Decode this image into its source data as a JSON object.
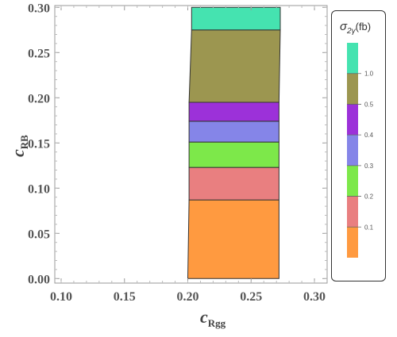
{
  "chart_data": {
    "type": "area",
    "title": "",
    "xlabel_main": "c",
    "xlabel_sub": "Rgg",
    "ylabel_main": "c",
    "ylabel_sub": "RB",
    "xlim": [
      0.095,
      0.31
    ],
    "ylim": [
      -0.005,
      0.302
    ],
    "xticks": [
      "0.10",
      "0.15",
      "0.20",
      "0.25",
      "0.30"
    ],
    "xtick_values": [
      0.1,
      0.15,
      0.2,
      0.25,
      0.3
    ],
    "yticks": [
      "0.00",
      "0.05",
      "0.10",
      "0.15",
      "0.20",
      "0.25",
      "0.30"
    ],
    "ytick_values": [
      0.0,
      0.05,
      0.1,
      0.15,
      0.2,
      0.25,
      0.3
    ],
    "grid": false,
    "legend_position": "right",
    "legend_title_main": "σ",
    "legend_title_sub": "2γ",
    "legend_title_unit": "(fb)",
    "legend_labels": [
      "0.1",
      "0.2",
      "0.3",
      "0.4",
      "0.5",
      "1.0"
    ],
    "bands": [
      {
        "y0": 0.0,
        "y1": 0.087,
        "x_left0": 0.2,
        "x_left1": 0.201,
        "x_right0": 0.272,
        "x_right1": 0.272,
        "color": "#ff9a40"
      },
      {
        "y0": 0.087,
        "y1": 0.123,
        "x_left0": 0.201,
        "x_left1": 0.201,
        "x_right0": 0.272,
        "x_right1": 0.272,
        "color": "#e97f80"
      },
      {
        "y0": 0.123,
        "y1": 0.151,
        "x_left0": 0.201,
        "x_left1": 0.201,
        "x_right0": 0.272,
        "x_right1": 0.272,
        "color": "#7de84a"
      },
      {
        "y0": 0.151,
        "y1": 0.174,
        "x_left0": 0.201,
        "x_left1": 0.201,
        "x_right0": 0.272,
        "x_right1": 0.272,
        "color": "#8585e8"
      },
      {
        "y0": 0.174,
        "y1": 0.195,
        "x_left0": 0.201,
        "x_left1": 0.201,
        "x_right0": 0.272,
        "x_right1": 0.272,
        "color": "#9c31d9"
      },
      {
        "y0": 0.195,
        "y1": 0.275,
        "x_left0": 0.201,
        "x_left1": 0.203,
        "x_right0": 0.272,
        "x_right1": 0.273,
        "color": "#9c9650"
      },
      {
        "y0": 0.275,
        "y1": 0.3,
        "x_left0": 0.203,
        "x_left1": 0.203,
        "x_right0": 0.273,
        "x_right1": 0.273,
        "color": "#45e3b0"
      }
    ],
    "legend_colors": [
      "#ff9a40",
      "#e97f80",
      "#7de84a",
      "#8585e8",
      "#9c31d9",
      "#9c9650",
      "#45e3b0"
    ]
  }
}
